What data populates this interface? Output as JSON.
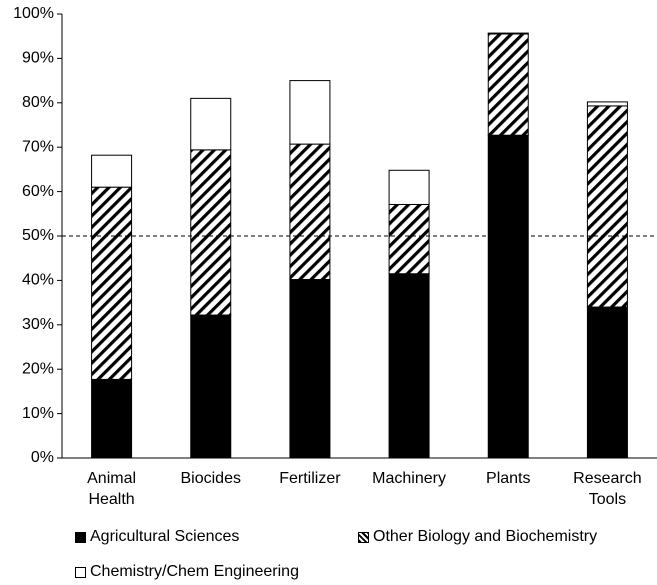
{
  "chart_data": {
    "type": "stacked_bar",
    "categories": [
      "Animal Health",
      "Biocides",
      "Fertilizer",
      "Machinery",
      "Plants",
      "Research Tools"
    ],
    "series": [
      {
        "name": "Agricultural Sciences",
        "color": "#000000",
        "values": [
          17.7,
          32.2,
          40.2,
          41.5,
          72.7,
          34.0
        ]
      },
      {
        "name": "Other Biology and Biochemistry",
        "color": "#000000",
        "hatch": true,
        "values": [
          43.3,
          37.2,
          30.5,
          15.6,
          22.8,
          45.3
        ]
      },
      {
        "name": "Chemistry/Chem Engineering",
        "color": "#ffffff",
        "values": [
          7.2,
          11.6,
          14.3,
          7.7,
          0.2,
          0.9
        ]
      }
    ],
    "ylim": [
      0,
      100
    ],
    "yticks": [
      {
        "value": 0,
        "label": "0%"
      },
      {
        "value": 10,
        "label": "10%"
      },
      {
        "value": 20,
        "label": "20%"
      },
      {
        "value": 30,
        "label": "30%"
      },
      {
        "value": 40,
        "label": "40%"
      },
      {
        "value": 50,
        "label": "50%"
      },
      {
        "value": 60,
        "label": "60%"
      },
      {
        "value": 70,
        "label": "70%"
      },
      {
        "value": 80,
        "label": "80%"
      },
      {
        "value": 90,
        "label": "90%"
      },
      {
        "value": 100,
        "label": "100%"
      }
    ],
    "reference_line": 50,
    "grid": false
  }
}
